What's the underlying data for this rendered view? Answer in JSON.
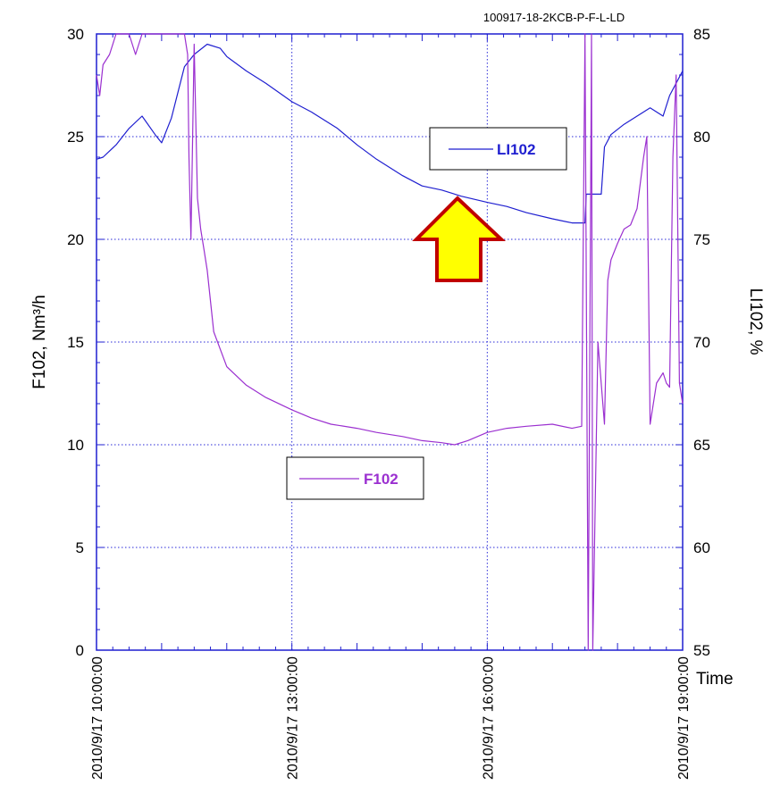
{
  "file_id": "100917-18-2KCB-P-F-L-LD",
  "chart_data": {
    "type": "line",
    "x_tick_labels": [
      "2010/9/17 10:00:00",
      "2010/9/17 13:00:00",
      "2010/9/17 16:00:00",
      "2010/9/17 19:00:00"
    ],
    "x_tick_hours": [
      10,
      13,
      16,
      19
    ],
    "x_range_hours": [
      10,
      19
    ],
    "xlabel": "Time",
    "ylabel_left": "F102, Nm³/h",
    "ylabel_right": "LI102, %",
    "ylim_left": [
      0,
      30
    ],
    "ylim_right": [
      55,
      85
    ],
    "yticks_left": [
      0,
      5,
      10,
      15,
      20,
      25,
      30
    ],
    "yticks_right": [
      55,
      60,
      65,
      70,
      75,
      80,
      85
    ],
    "grid": true,
    "series": [
      {
        "name": "LI102",
        "axis": "right",
        "color": "#1f1fd0",
        "x_hours": [
          10.0,
          10.1,
          10.3,
          10.5,
          10.7,
          10.9,
          11.0,
          11.15,
          11.35,
          11.5,
          11.7,
          11.9,
          12.0,
          12.3,
          12.6,
          13.0,
          13.3,
          13.7,
          14.0,
          14.3,
          14.7,
          15.0,
          15.3,
          15.6,
          16.0,
          16.3,
          16.6,
          17.0,
          17.3,
          17.5,
          17.52,
          17.6,
          17.75,
          17.8,
          17.9,
          18.1,
          18.3,
          18.5,
          18.7,
          18.8,
          19.0
        ],
        "values": [
          78.9,
          79.0,
          79.6,
          80.4,
          81.0,
          80.1,
          79.7,
          80.9,
          83.4,
          84.0,
          84.5,
          84.3,
          83.9,
          83.2,
          82.6,
          81.7,
          81.2,
          80.4,
          79.6,
          78.9,
          78.1,
          77.6,
          77.4,
          77.1,
          76.8,
          76.6,
          76.3,
          76.0,
          75.8,
          75.8,
          77.2,
          77.2,
          77.2,
          79.5,
          80.1,
          80.6,
          81.0,
          81.4,
          81.0,
          82.0,
          83.2
        ]
      },
      {
        "name": "F102",
        "axis": "left",
        "color": "#9b30d0",
        "x_hours": [
          10.0,
          10.05,
          10.1,
          10.2,
          10.3,
          10.4,
          10.5,
          10.6,
          10.7,
          10.75,
          10.8,
          10.9,
          11.0,
          11.2,
          11.35,
          11.4,
          11.42,
          11.45,
          11.5,
          11.55,
          11.6,
          11.65,
          11.7,
          11.8,
          12.0,
          12.3,
          12.6,
          13.0,
          13.3,
          13.6,
          14.0,
          14.3,
          14.7,
          15.0,
          15.3,
          15.5,
          15.7,
          16.0,
          16.3,
          16.6,
          17.0,
          17.3,
          17.45,
          17.5,
          17.55,
          17.6,
          17.62,
          17.7,
          17.8,
          17.85,
          17.9,
          18.0,
          18.1,
          18.2,
          18.3,
          18.4,
          18.45,
          18.5,
          18.6,
          18.7,
          18.75,
          18.8,
          18.85,
          18.9,
          18.95,
          19.0
        ],
        "values": [
          28,
          27,
          28.5,
          29,
          30,
          30,
          30,
          29,
          30,
          30,
          30,
          30,
          30,
          30,
          30,
          29,
          24,
          20,
          29.5,
          22,
          20.5,
          19.5,
          18.5,
          15.5,
          13.8,
          12.9,
          12.3,
          11.7,
          11.3,
          11.0,
          10.8,
          10.6,
          10.4,
          10.2,
          10.1,
          10.0,
          10.2,
          10.6,
          10.8,
          10.9,
          11.0,
          10.8,
          10.9,
          30,
          0,
          30,
          0,
          15,
          11,
          18,
          19,
          19.8,
          20.5,
          20.7,
          21.5,
          24,
          25,
          11,
          13,
          13.5,
          13,
          12.8,
          24,
          28,
          13,
          12
        ]
      }
    ],
    "legend": [
      "LI102",
      "F102"
    ]
  }
}
